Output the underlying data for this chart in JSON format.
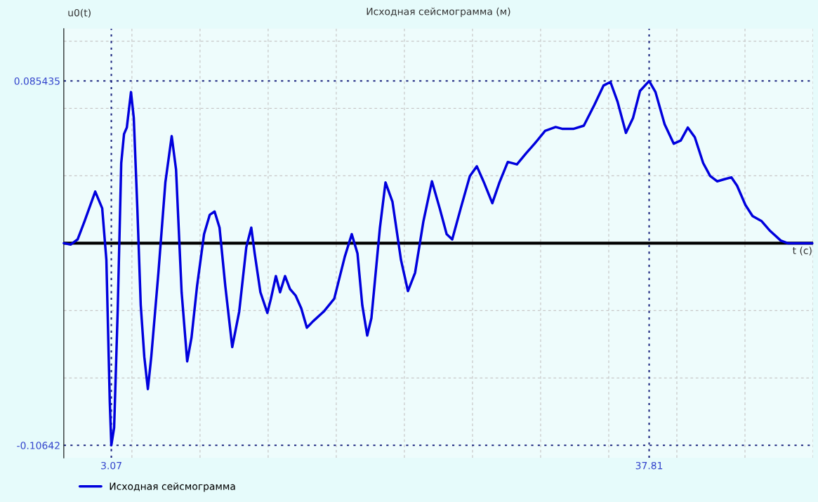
{
  "chart_data": {
    "type": "line",
    "title": "Исходная сейсмограмма (м)",
    "xlabel": "t (c)",
    "ylabel": "u0(t)",
    "xlim": [
      0,
      48.4
    ],
    "ylim": [
      -0.113,
      0.113
    ],
    "xticks": [
      3.07,
      37.81,
      {
        "value": 4.4,
        "label": null
      },
      {
        "value": 8.8,
        "label": null
      },
      {
        "value": 13.2,
        "label": null
      },
      {
        "value": 17.6,
        "label": null
      },
      {
        "value": 22,
        "label": null
      },
      {
        "value": 26.4,
        "label": null
      },
      {
        "value": 30.8,
        "label": null
      },
      {
        "value": 35.2,
        "label": null
      },
      {
        "value": 39.6,
        "label": null
      },
      {
        "value": 44,
        "label": null
      },
      {
        "value": 48.4,
        "label": null
      }
    ],
    "yticks": [
      -0.10642,
      0.085435,
      {
        "value": -0.07095,
        "label": null
      },
      {
        "value": -0.03547,
        "label": null
      },
      {
        "value": 0.03547,
        "label": null
      },
      {
        "value": 0.07095,
        "label": null
      },
      {
        "value": 0.10642,
        "label": null
      }
    ],
    "grid": true,
    "legend": "bottom left",
    "x": [
      0,
      0.44,
      0.89,
      1.34,
      2.03,
      2.48,
      2.75,
      2.97,
      3.07,
      3.25,
      3.48,
      3.71,
      3.89,
      4.07,
      4.34,
      4.52,
      4.75,
      4.97,
      5.2,
      5.43,
      5.65,
      6.11,
      6.56,
      6.97,
      7.25,
      7.61,
      7.97,
      8.25,
      8.61,
      9.06,
      9.43,
      9.74,
      10.06,
      10.43,
      10.88,
      11.33,
      11.79,
      12.11,
      12.33,
      12.7,
      13.15,
      13.38,
      13.7,
      13.97,
      14.29,
      14.61,
      14.97,
      15.34,
      15.7,
      16.1,
      16.79,
      17.47,
      18.15,
      18.6,
      18.97,
      19.28,
      19.6,
      19.87,
      20.42,
      20.78,
      21.23,
      21.78,
      22.23,
      22.69,
      23.23,
      23.78,
      24.28,
      24.73,
      25.09,
      25.64,
      26.23,
      26.68,
      27.14,
      27.68,
      28.14,
      28.68,
      29.27,
      29.86,
      30.41,
      31.09,
      31.77,
      32.22,
      32.91,
      33.59,
      34.27,
      34.86,
      35.31,
      35.77,
      36.31,
      36.77,
      37.22,
      37.81,
      38.22,
      38.81,
      39.4,
      39.85,
      40.31,
      40.76,
      41.3,
      41.75,
      42.21,
      42.67,
      43.12,
      43.49,
      44.03,
      44.49,
      45.08,
      45.62,
      46.31,
      46.76,
      48.12,
      48.35
    ],
    "series": [
      {
        "name": "Исходная сейсмограмма",
        "color": "#0000dd",
        "values": [
          0,
          -0.0007,
          0.002,
          0.0116,
          0.0272,
          0.0184,
          -0.0088,
          -0.0836,
          -0.1064,
          -0.0972,
          -0.036,
          0.0422,
          0.0575,
          0.0609,
          0.0796,
          0.066,
          0.0184,
          -0.0326,
          -0.0598,
          -0.0768,
          -0.0598,
          -0.0156,
          0.032,
          0.0564,
          0.0388,
          -0.0258,
          -0.0622,
          -0.0496,
          -0.0224,
          0.0048,
          0.015,
          0.0167,
          0.0082,
          -0.0224,
          -0.0547,
          -0.036,
          -0.002,
          0.0082,
          -0.0054,
          -0.0258,
          -0.0367,
          -0.0292,
          -0.0173,
          -0.0258,
          -0.0173,
          -0.0241,
          -0.0275,
          -0.0343,
          -0.0445,
          -0.0411,
          -0.036,
          -0.0292,
          -0.0071,
          0.0048,
          -0.0054,
          -0.0326,
          -0.0486,
          -0.0394,
          0.0082,
          0.032,
          0.0218,
          -0.0088,
          -0.0252,
          -0.0156,
          0.0116,
          0.0326,
          0.0184,
          0.0048,
          0.002,
          0.0184,
          0.0354,
          0.0405,
          0.032,
          0.0211,
          0.032,
          0.0428,
          0.0415,
          0.0473,
          0.0524,
          0.0592,
          0.0612,
          0.0602,
          0.0602,
          0.0619,
          0.0728,
          0.083,
          0.0849,
          0.0745,
          0.0581,
          0.066,
          0.0802,
          0.0854,
          0.0796,
          0.0626,
          0.0524,
          0.0541,
          0.0609,
          0.0558,
          0.0422,
          0.0354,
          0.0326,
          0.0337,
          0.0347,
          0.0303,
          0.0201,
          0.0143,
          0.0116,
          0.0065,
          0.0014,
          0,
          0,
          0
        ]
      }
    ]
  }
}
